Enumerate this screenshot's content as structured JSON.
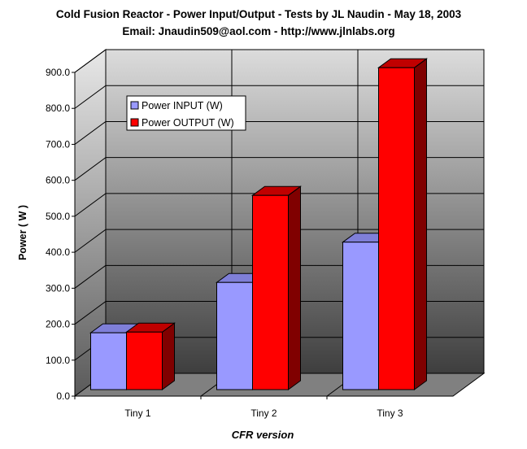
{
  "chart_data": {
    "type": "bar",
    "title": "Cold Fusion Reactor - Power Input/Output - Tests by JL Naudin - May 18, 2003",
    "subtitle": "Email: Jnaudin509@aol.com - http://www.jlnlabs.org",
    "xlabel": "CFR version",
    "ylabel": "Power ( W )",
    "categories": [
      "Tiny 1",
      "Tiny 2",
      "Tiny 3"
    ],
    "series": [
      {
        "name": "Power INPUT (W)",
        "color": "#9999ff",
        "values": [
          158,
          298,
          410
        ]
      },
      {
        "name": "Power OUTPUT (W)",
        "color": "#ff0000",
        "values": [
          160,
          540,
          895
        ]
      }
    ],
    "ylim": [
      0,
      900
    ],
    "yticks": [
      "0.0",
      "100.0",
      "200.0",
      "300.0",
      "400.0",
      "500.0",
      "600.0",
      "700.0",
      "800.0",
      "900.0"
    ],
    "grid": true,
    "legend_position": "top-left",
    "three_d": true,
    "background": "gray-gradient"
  }
}
